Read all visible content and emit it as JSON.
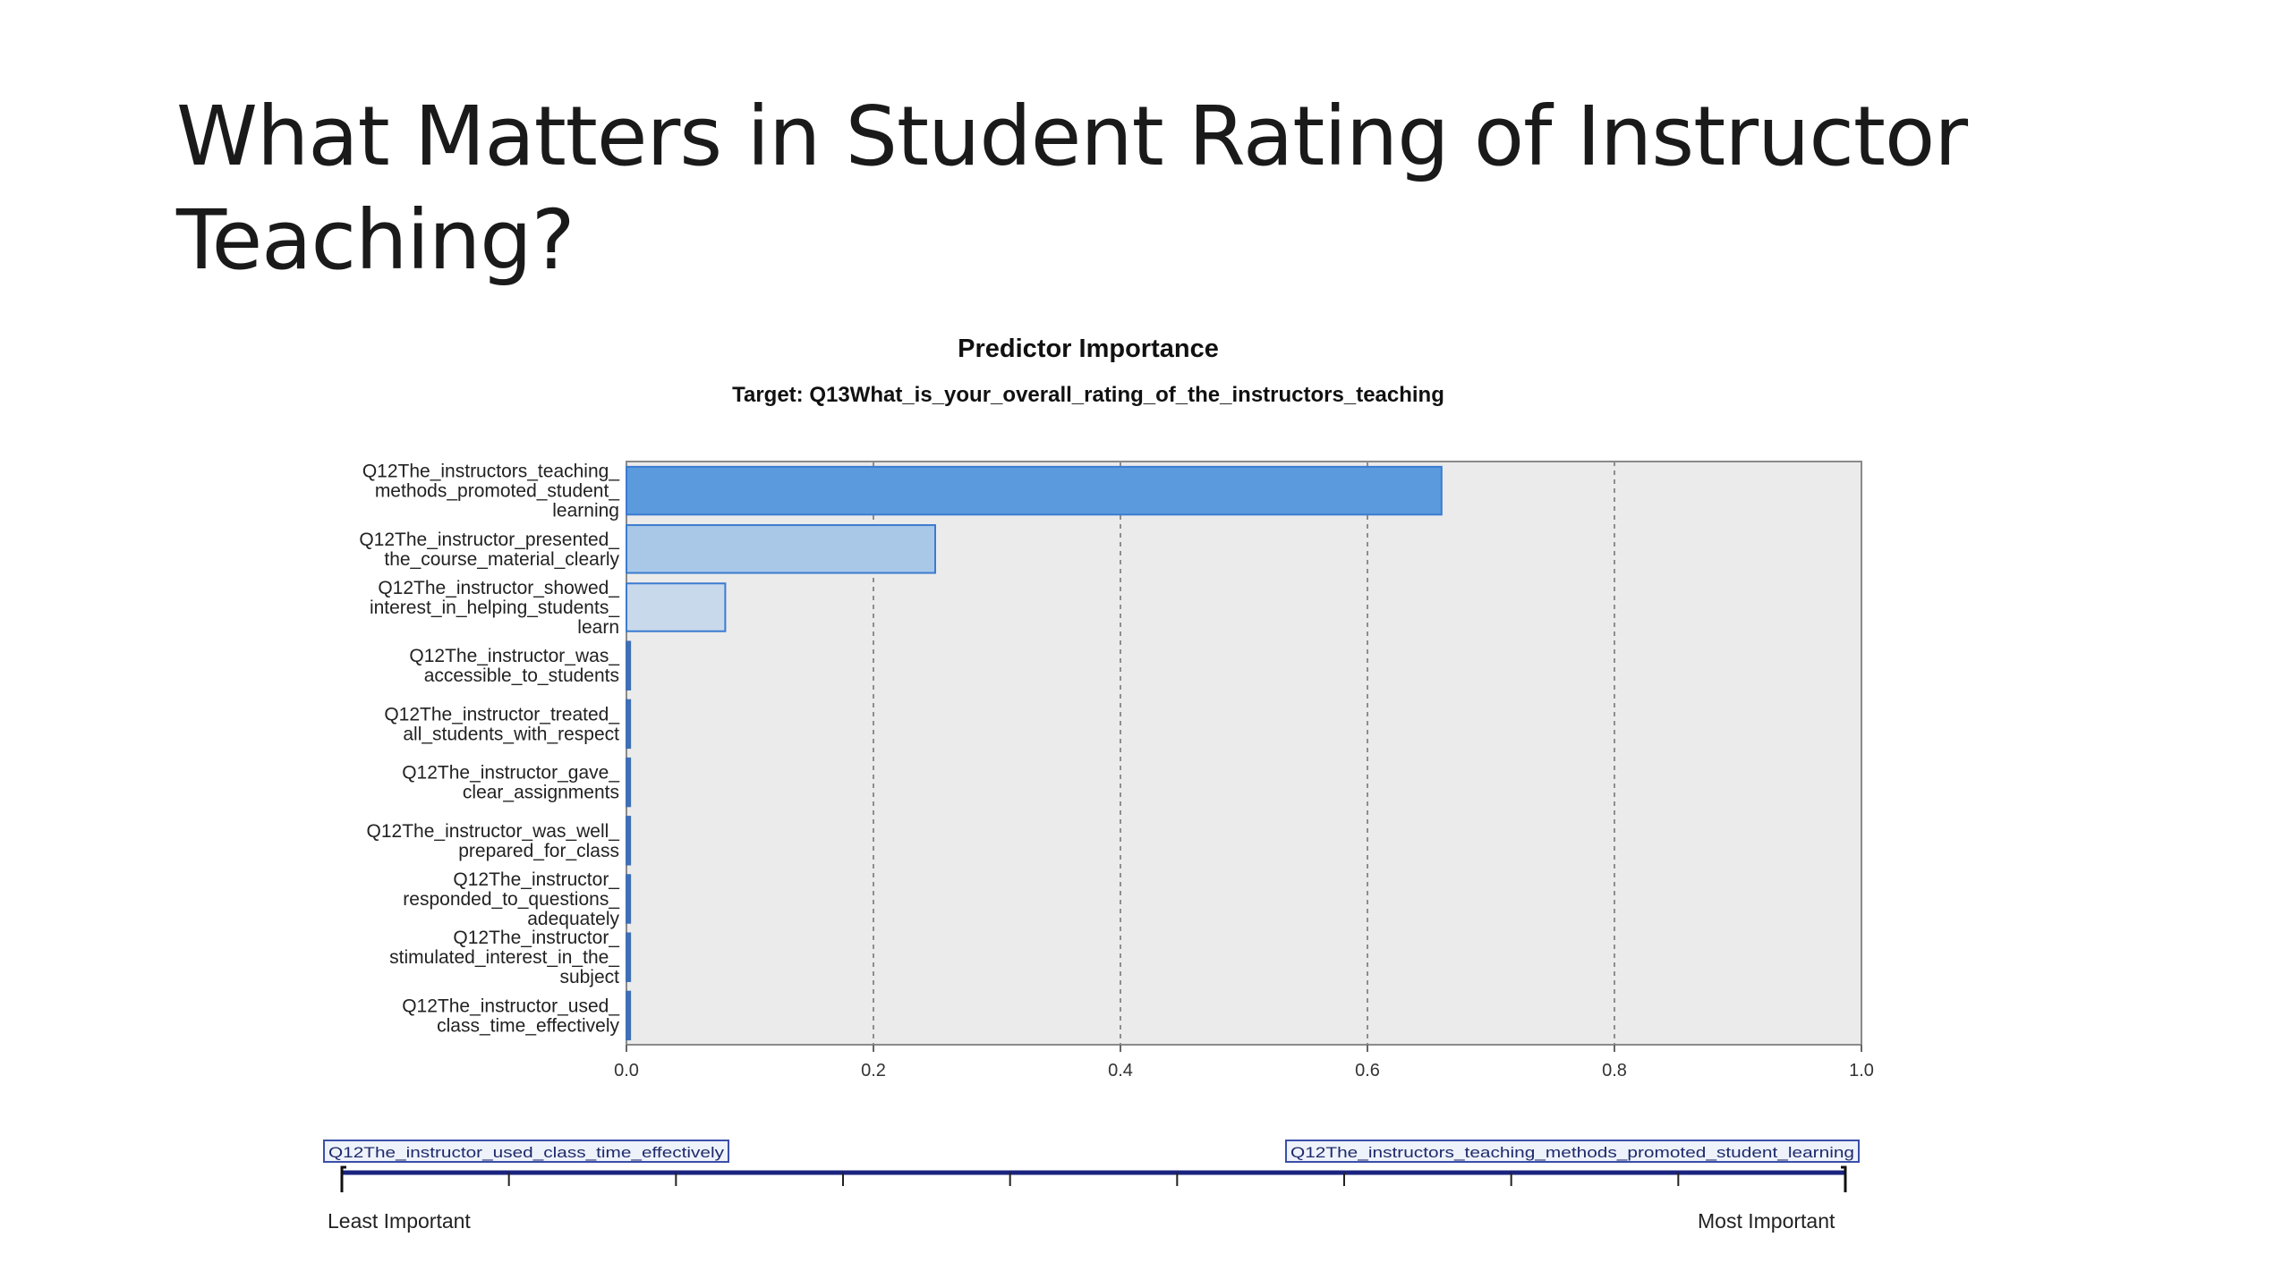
{
  "slide": {
    "title_lines": [
      "What Matters in Student Rating of Instructor",
      "Teaching?"
    ]
  },
  "chart_data": {
    "type": "bar",
    "orientation": "horizontal",
    "title": "Predictor Importance",
    "subtitle": "Target: Q13What_is_your_overall_rating_of_the_instructors_teaching",
    "categories": [
      [
        "Q12The_instructors_teaching_",
        "methods_promoted_student_",
        "learning"
      ],
      [
        "Q12The_instructor_presented_",
        "the_course_material_clearly"
      ],
      [
        "Q12The_instructor_showed_",
        "interest_in_helping_students_",
        "learn"
      ],
      [
        "Q12The_instructor_was_",
        "accessible_to_students"
      ],
      [
        "Q12The_instructor_treated_",
        "all_students_with_respect"
      ],
      [
        "Q12The_instructor_gave_",
        "clear_assignments"
      ],
      [
        "Q12The_instructor_was_well_",
        "prepared_for_class"
      ],
      [
        "Q12The_instructor_",
        "responded_to_questions_",
        "adequately"
      ],
      [
        "Q12The_instructor_",
        "stimulated_interest_in_the_",
        "subject"
      ],
      [
        "Q12The_instructor_used_",
        "class_time_effectively"
      ]
    ],
    "values": [
      0.66,
      0.25,
      0.08,
      0.003,
      0.003,
      0.003,
      0.003,
      0.003,
      0.003,
      0.003
    ],
    "bar_colors": [
      "#5b9bdd",
      "#a9c8e8",
      "#c9d9ec",
      "#3f6fb5",
      "#3f6fb5",
      "#3f6fb5",
      "#3f6fb5",
      "#3f6fb5",
      "#3f6fb5",
      "#3f6fb5"
    ],
    "xlim": [
      0,
      1.0
    ],
    "xticks": [
      "0.0",
      "0.2",
      "0.4",
      "0.6",
      "0.8",
      "1.0"
    ],
    "grid": "vertical dashed",
    "plot_background": "#ebebeb",
    "slider": {
      "left_box": "Q12The_instructor_used_class_time_effectively",
      "right_box": "Q12The_instructors_teaching_methods_promoted_student_learning",
      "left_label": "Least Important",
      "right_label": "Most Important",
      "tick_count": 10,
      "line_color": "#1a237e"
    }
  }
}
